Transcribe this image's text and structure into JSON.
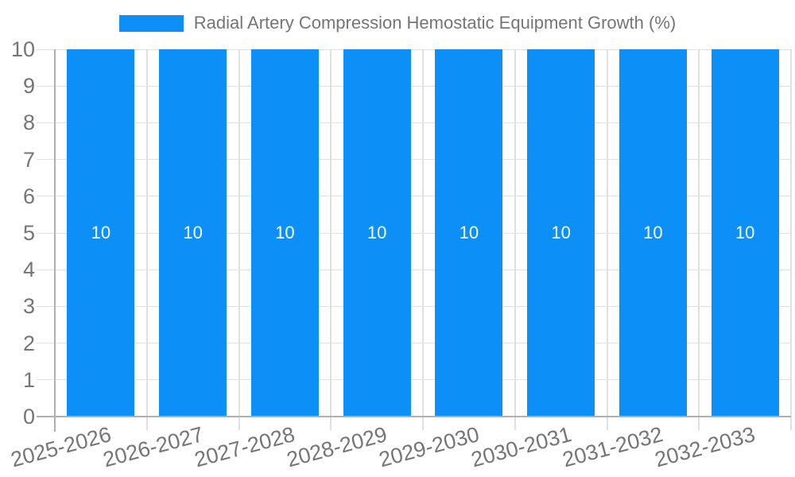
{
  "chart_data": {
    "type": "bar",
    "title": "Radial Artery Compression Hemostatic Equipment Growth (%)",
    "categories": [
      "2025-2026",
      "2026-2027",
      "2027-2028",
      "2028-2029",
      "2029-2030",
      "2030-2031",
      "2031-2032",
      "2032-2033"
    ],
    "series": [
      {
        "name": "Radial Artery Compression Hemostatic Equipment Growth (%)",
        "values": [
          10,
          10,
          10,
          10,
          10,
          10,
          10,
          10
        ]
      }
    ],
    "bar_value_labels": [
      "10",
      "10",
      "10",
      "10",
      "10",
      "10",
      "10",
      "10"
    ],
    "xlabel": "",
    "ylabel": "",
    "ylim": [
      0,
      10
    ],
    "yticks": [
      "0",
      "1",
      "2",
      "3",
      "4",
      "5",
      "6",
      "7",
      "8",
      "9",
      "10"
    ],
    "grid": true,
    "legend_position": "top-center",
    "colors": {
      "bar": "#0d8ff8",
      "gridline": "#e0e0e0",
      "axis": "#b0b0b0",
      "tick_text": "#757575",
      "legend_text": "#757575",
      "bar_value_text": "#ffffff",
      "background": "#ffffff"
    }
  }
}
